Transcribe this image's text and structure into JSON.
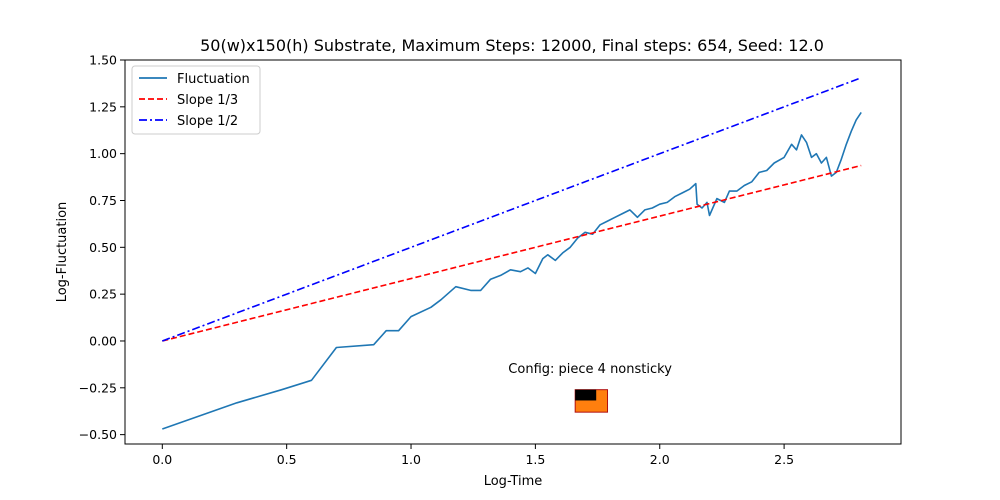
{
  "chart_data": {
    "type": "line",
    "title": "50(w)x150(h) Substrate, Maximum Steps: 12000, Final steps: 654, Seed: 12.0",
    "xlabel": "Log-Time",
    "ylabel": "Log-Fluctuation",
    "xlim": [
      -0.15,
      2.97
    ],
    "ylim": [
      -0.55,
      1.5
    ],
    "xticks": [
      0.0,
      0.5,
      1.0,
      1.5,
      2.0,
      2.5
    ],
    "xtick_labels": [
      "0.0",
      "0.5",
      "1.0",
      "1.5",
      "2.0",
      "2.5"
    ],
    "yticks": [
      -0.5,
      -0.25,
      0.0,
      0.25,
      0.5,
      0.75,
      1.0,
      1.25,
      1.5
    ],
    "ytick_labels": [
      "−0.50",
      "−0.25",
      "0.00",
      "0.25",
      "0.50",
      "0.75",
      "1.00",
      "1.25",
      "1.50"
    ],
    "grid": false,
    "legend_position": "top-left",
    "series": [
      {
        "name": "Fluctuation",
        "color": "#1f77b4",
        "style": "solid",
        "points": [
          [
            0.0,
            -0.47
          ],
          [
            0.3,
            -0.33
          ],
          [
            0.48,
            -0.26
          ],
          [
            0.6,
            -0.21
          ],
          [
            0.7,
            -0.035
          ],
          [
            0.85,
            -0.02
          ],
          [
            0.9,
            0.055
          ],
          [
            0.95,
            0.055
          ],
          [
            1.0,
            0.13
          ],
          [
            1.08,
            0.18
          ],
          [
            1.12,
            0.22
          ],
          [
            1.18,
            0.29
          ],
          [
            1.24,
            0.27
          ],
          [
            1.28,
            0.27
          ],
          [
            1.32,
            0.33
          ],
          [
            1.36,
            0.35
          ],
          [
            1.4,
            0.38
          ],
          [
            1.44,
            0.37
          ],
          [
            1.47,
            0.39
          ],
          [
            1.5,
            0.36
          ],
          [
            1.53,
            0.44
          ],
          [
            1.55,
            0.46
          ],
          [
            1.58,
            0.43
          ],
          [
            1.61,
            0.47
          ],
          [
            1.64,
            0.5
          ],
          [
            1.67,
            0.55
          ],
          [
            1.7,
            0.58
          ],
          [
            1.73,
            0.57
          ],
          [
            1.76,
            0.62
          ],
          [
            1.79,
            0.64
          ],
          [
            1.82,
            0.66
          ],
          [
            1.85,
            0.68
          ],
          [
            1.88,
            0.7
          ],
          [
            1.91,
            0.66
          ],
          [
            1.94,
            0.7
          ],
          [
            1.97,
            0.71
          ],
          [
            2.0,
            0.73
          ],
          [
            2.03,
            0.74
          ],
          [
            2.06,
            0.77
          ],
          [
            2.09,
            0.79
          ],
          [
            2.12,
            0.81
          ],
          [
            2.145,
            0.84
          ],
          [
            2.15,
            0.73
          ],
          [
            2.17,
            0.71
          ],
          [
            2.19,
            0.74
          ],
          [
            2.2,
            0.67
          ],
          [
            2.23,
            0.76
          ],
          [
            2.26,
            0.74
          ],
          [
            2.28,
            0.8
          ],
          [
            2.31,
            0.8
          ],
          [
            2.34,
            0.83
          ],
          [
            2.37,
            0.85
          ],
          [
            2.4,
            0.9
          ],
          [
            2.43,
            0.91
          ],
          [
            2.46,
            0.95
          ],
          [
            2.5,
            0.98
          ],
          [
            2.53,
            1.05
          ],
          [
            2.55,
            1.02
          ],
          [
            2.57,
            1.1
          ],
          [
            2.59,
            1.06
          ],
          [
            2.61,
            0.98
          ],
          [
            2.63,
            1.0
          ],
          [
            2.65,
            0.95
          ],
          [
            2.67,
            0.98
          ],
          [
            2.69,
            0.88
          ],
          [
            2.71,
            0.9
          ],
          [
            2.73,
            0.97
          ],
          [
            2.75,
            1.05
          ],
          [
            2.77,
            1.12
          ],
          [
            2.79,
            1.18
          ],
          [
            2.81,
            1.22
          ]
        ]
      },
      {
        "name": "Slope 1/3",
        "color": "#ff0000",
        "style": "dashed",
        "points": [
          [
            0.0,
            0.0
          ],
          [
            2.81,
            0.937
          ]
        ]
      },
      {
        "name": "Slope 1/2",
        "color": "#0000ff",
        "style": "dashdot",
        "points": [
          [
            0.0,
            0.0
          ],
          [
            2.81,
            1.405
          ]
        ]
      }
    ],
    "annotation": {
      "text": "Config:  piece 4 nonsticky",
      "x": 1.72,
      "y": -0.15
    },
    "inset": {
      "x_range": [
        1.66,
        1.79
      ],
      "y_range": [
        -0.38,
        -0.26
      ],
      "fill_color": "#ff7f0e",
      "block_color": "#000000"
    }
  }
}
